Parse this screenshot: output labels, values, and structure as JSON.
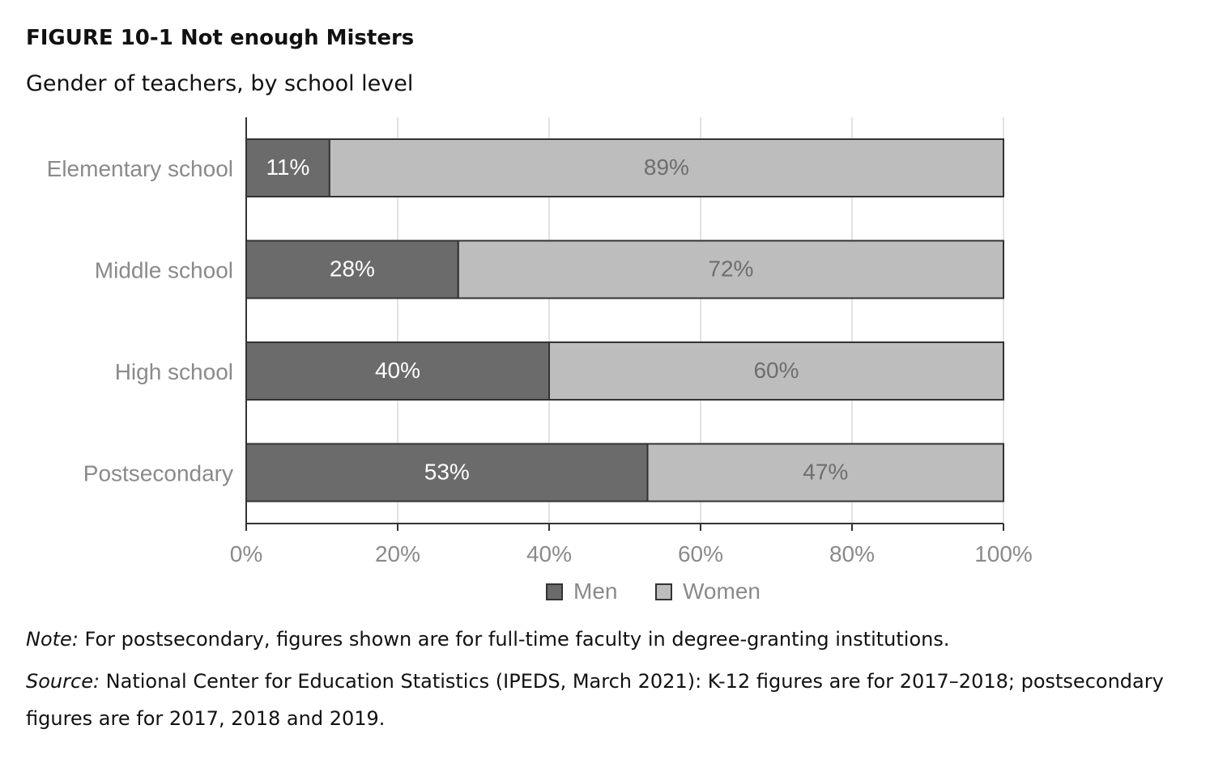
{
  "figure": {
    "title": "FIGURE 10-1  Not enough Misters",
    "subtitle": "Gender of teachers, by school level",
    "note_label": "Note:",
    "note_text": " For postsecondary, figures shown are for full-time faculty in degree-granting institutions.",
    "source_label": "Source:",
    "source_text": " National Center for Education Statistics (IPEDS, March 2021): K-12 figures are for 2017–2018; postsecondary figures are for 2017, 2018 and 2019."
  },
  "chart_data": {
    "type": "bar",
    "orientation": "horizontal",
    "stacked": true,
    "categories": [
      "Elementary school",
      "Middle school",
      "High school",
      "Postsecondary"
    ],
    "series": [
      {
        "name": "Men",
        "values": [
          11,
          28,
          40,
          53
        ],
        "labels": [
          "11%",
          "28%",
          "40%",
          "53%"
        ],
        "color": "#6b6b6b",
        "label_color": "#ffffff"
      },
      {
        "name": "Women",
        "values": [
          89,
          72,
          60,
          47
        ],
        "labels": [
          "89%",
          "72%",
          "60%",
          "47%"
        ],
        "color": "#bdbdbd",
        "label_color": "#6e6e6e"
      }
    ],
    "xlim": [
      0,
      100
    ],
    "x_ticks": [
      0,
      20,
      40,
      60,
      80,
      100
    ],
    "x_tick_labels": [
      "0%",
      "20%",
      "40%",
      "60%",
      "80%",
      "100%"
    ],
    "grid": true,
    "legend": "bottom-center",
    "colors": {
      "gridline": "#d9d9d9",
      "axis": "#333333",
      "bar_border": "#333333",
      "tick_label": "#8a8a8a"
    }
  }
}
